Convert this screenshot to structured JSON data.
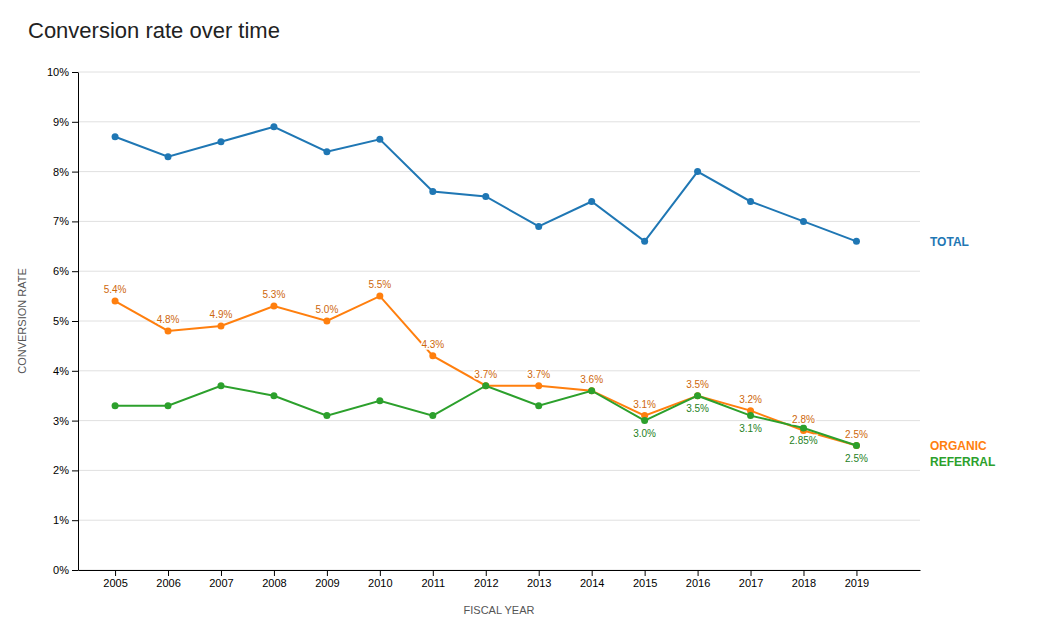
{
  "chart_data": {
    "type": "line",
    "title": "Conversion rate over time",
    "xlabel": "FISCAL YEAR",
    "ylabel": "CONVERSION RATE",
    "x": [
      2005,
      2006,
      2007,
      2008,
      2009,
      2010,
      2011,
      2012,
      2013,
      2014,
      2015,
      2016,
      2017,
      2018,
      2019
    ],
    "series": [
      {
        "name": "TOTAL",
        "values": [
          8.7,
          8.3,
          8.6,
          8.9,
          8.4,
          8.65,
          7.6,
          7.5,
          6.9,
          7.4,
          6.6,
          8.0,
          7.4,
          7.0,
          6.6
        ]
      },
      {
        "name": "ORGANIC",
        "values": [
          5.4,
          4.8,
          4.9,
          5.3,
          5.0,
          5.5,
          4.3,
          3.7,
          3.7,
          3.6,
          3.1,
          3.5,
          3.2,
          2.8,
          2.5
        ],
        "data_labels": true,
        "value_labels": [
          "5.4%",
          "4.8%",
          "4.9%",
          "5.3%",
          "5.0%",
          "5.5%",
          "4.3%",
          "3.7%",
          "3.7%",
          "3.6%",
          "3.1%",
          "3.5%",
          "3.2%",
          "2.8%",
          "2.5%"
        ]
      },
      {
        "name": "REFERRAL",
        "values": [
          3.3,
          3.3,
          3.7,
          3.5,
          3.1,
          3.4,
          3.1,
          3.7,
          3.3,
          3.6,
          3.0,
          3.5,
          3.1,
          2.85,
          2.5
        ],
        "data_labels": true,
        "value_labels": [
          null,
          null,
          null,
          null,
          null,
          null,
          null,
          null,
          null,
          null,
          "3.0%",
          "3.5%",
          "3.1%",
          "2.85%",
          "2.5%"
        ]
      }
    ],
    "xlim": [
      2004.3,
      2020.2
    ],
    "xticks": [
      2005,
      2006,
      2007,
      2008,
      2009,
      2010,
      2011,
      2012,
      2013,
      2014,
      2015,
      2016,
      2017,
      2018,
      2019
    ],
    "ylim": [
      0,
      10
    ],
    "yticks": [
      {
        "value": 0,
        "label": "0%"
      },
      {
        "value": 1,
        "label": "1%"
      },
      {
        "value": 2,
        "label": "2%"
      },
      {
        "value": 3,
        "label": "3%"
      },
      {
        "value": 4,
        "label": "4%"
      },
      {
        "value": 5,
        "label": "5%"
      },
      {
        "value": 6,
        "label": "6%"
      },
      {
        "value": 7,
        "label": "7%"
      },
      {
        "value": 8,
        "label": "8%"
      },
      {
        "value": 9,
        "label": "9%"
      },
      {
        "value": 10,
        "label": "10%"
      }
    ],
    "grid": true,
    "marker": "circle"
  }
}
